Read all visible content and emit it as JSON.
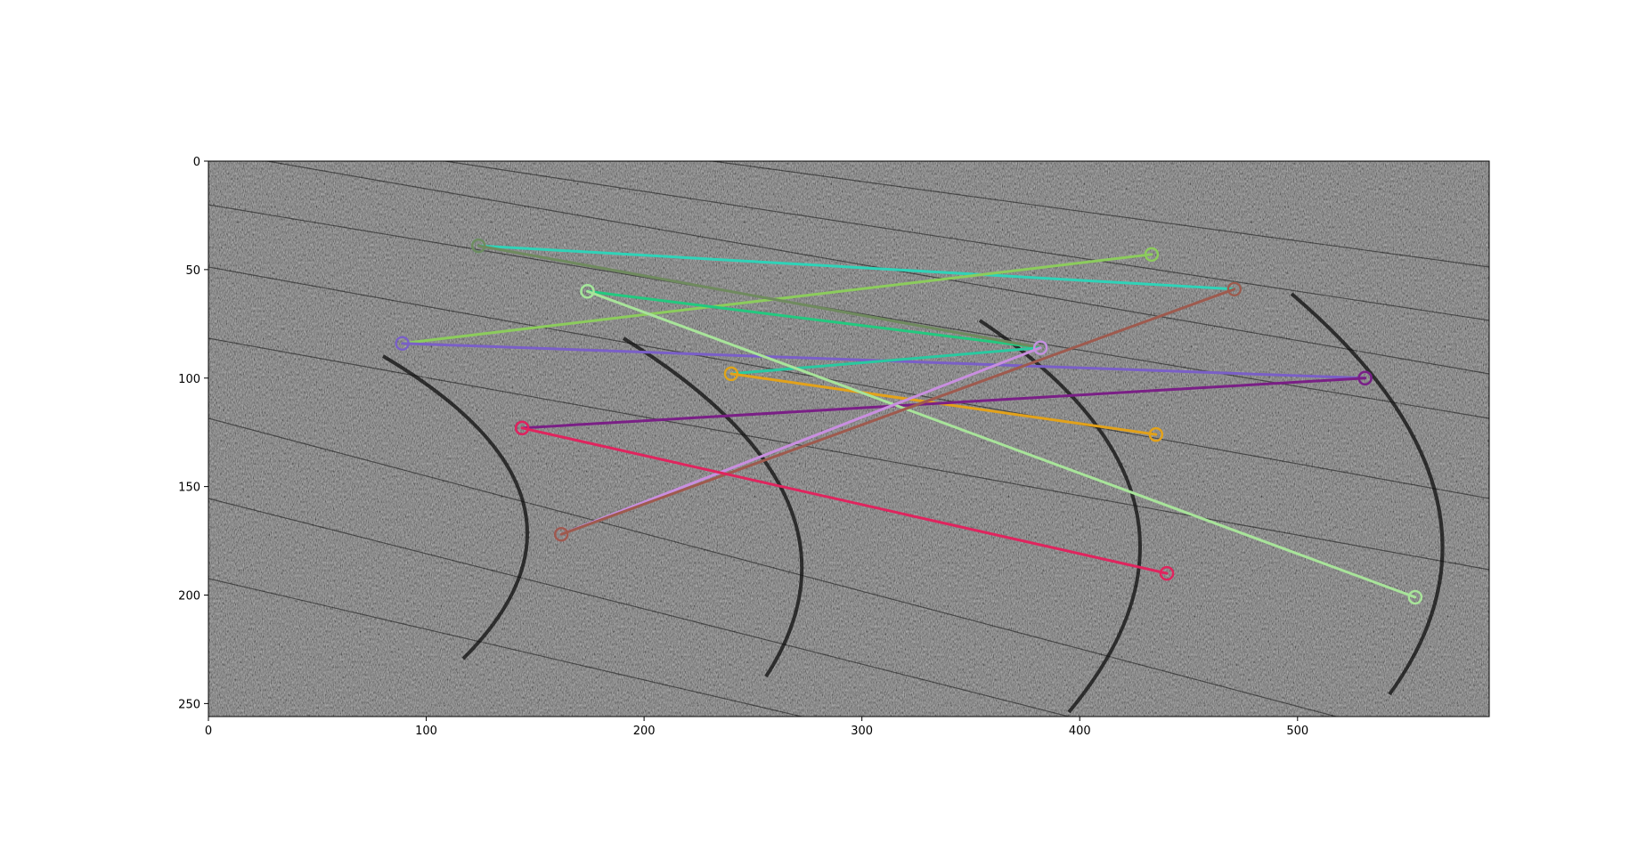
{
  "chart_data": {
    "type": "scatter",
    "description_kind": "image with keypoint match lines",
    "title": "",
    "xlabel": "",
    "ylabel": "",
    "xlim": [
      0,
      588
    ],
    "ylim": [
      256,
      0
    ],
    "xticks": [
      0,
      100,
      200,
      300,
      400,
      500
    ],
    "yticks": [
      0,
      50,
      100,
      150,
      200,
      250
    ],
    "grid": false,
    "legend": "none",
    "background": "grayscale sonar image",
    "matches": [
      {
        "p1": [
          124,
          39
        ],
        "p2": [
          471,
          59
        ],
        "color": "#2fd3b8"
      },
      {
        "p1": [
          89,
          84
        ],
        "p2": [
          433,
          43
        ],
        "color": "#8ccc5c"
      },
      {
        "p1": [
          174,
          60
        ],
        "p2": [
          382,
          86
        ],
        "color": "#22c97f"
      },
      {
        "p1": [
          124,
          39
        ],
        "p2": [
          382,
          86
        ],
        "color": "#6f8a5e"
      },
      {
        "p1": [
          89,
          84
        ],
        "p2": [
          531,
          100
        ],
        "color": "#7a5fc8"
      },
      {
        "p1": [
          240,
          98
        ],
        "p2": [
          382,
          86
        ],
        "color": "#29c9a0"
      },
      {
        "p1": [
          240,
          98
        ],
        "p2": [
          435,
          126
        ],
        "color": "#e3a21a"
      },
      {
        "p1": [
          144,
          123
        ],
        "p2": [
          531,
          100
        ],
        "color": "#7a1f86"
      },
      {
        "p1": [
          174,
          60
        ],
        "p2": [
          554,
          201
        ],
        "color": "#a8e49a"
      },
      {
        "p1": [
          162,
          172
        ],
        "p2": [
          382,
          86
        ],
        "color": "#c98fe0"
      },
      {
        "p1": [
          162,
          172
        ],
        "p2": [
          471,
          59
        ],
        "color": "#9e5a4e"
      },
      {
        "p1": [
          144,
          123
        ],
        "p2": [
          440,
          190
        ],
        "color": "#e0245e"
      }
    ]
  }
}
